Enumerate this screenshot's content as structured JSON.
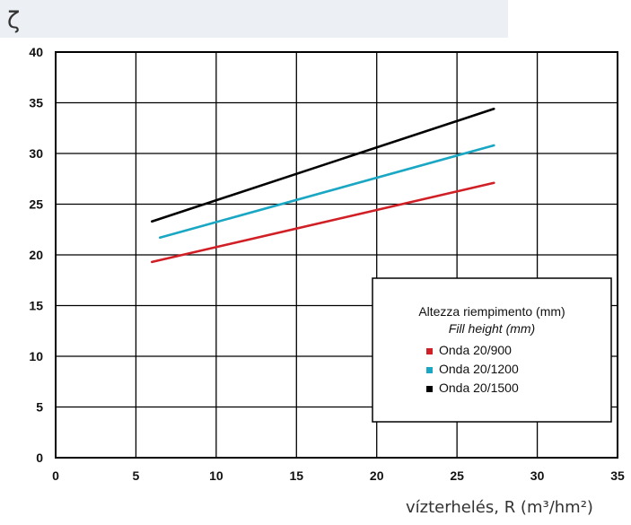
{
  "axes": {
    "y_symbol": "ζ",
    "x_title": "vízterhelés, R (m³/hm²)"
  },
  "chart_data": {
    "type": "line",
    "title": "",
    "xlabel": "vízterhelés, R (m³/hm²)",
    "ylabel": "ζ",
    "xlim": [
      0,
      35
    ],
    "ylim": [
      0,
      40
    ],
    "x_ticks": [
      0,
      5,
      10,
      15,
      20,
      25,
      30,
      35
    ],
    "y_ticks": [
      0,
      5,
      10,
      15,
      20,
      25,
      30,
      35,
      40
    ],
    "grid": true,
    "legend": {
      "position": "lower-right",
      "title": "Altezza riempimento (mm)",
      "subtitle": "Fill height (mm)"
    },
    "series": [
      {
        "name": "Onda 20/900",
        "color": "#d11f26",
        "x": [
          6.0,
          27.3
        ],
        "y": [
          19.3,
          27.1
        ]
      },
      {
        "name": "Onda 20/1200",
        "color": "#1aa7c4",
        "x": [
          6.5,
          27.3
        ],
        "y": [
          21.7,
          30.8
        ]
      },
      {
        "name": "Onda 20/1500",
        "color": "#000000",
        "x": [
          6.0,
          27.3
        ],
        "y": [
          23.3,
          34.4
        ]
      }
    ]
  }
}
